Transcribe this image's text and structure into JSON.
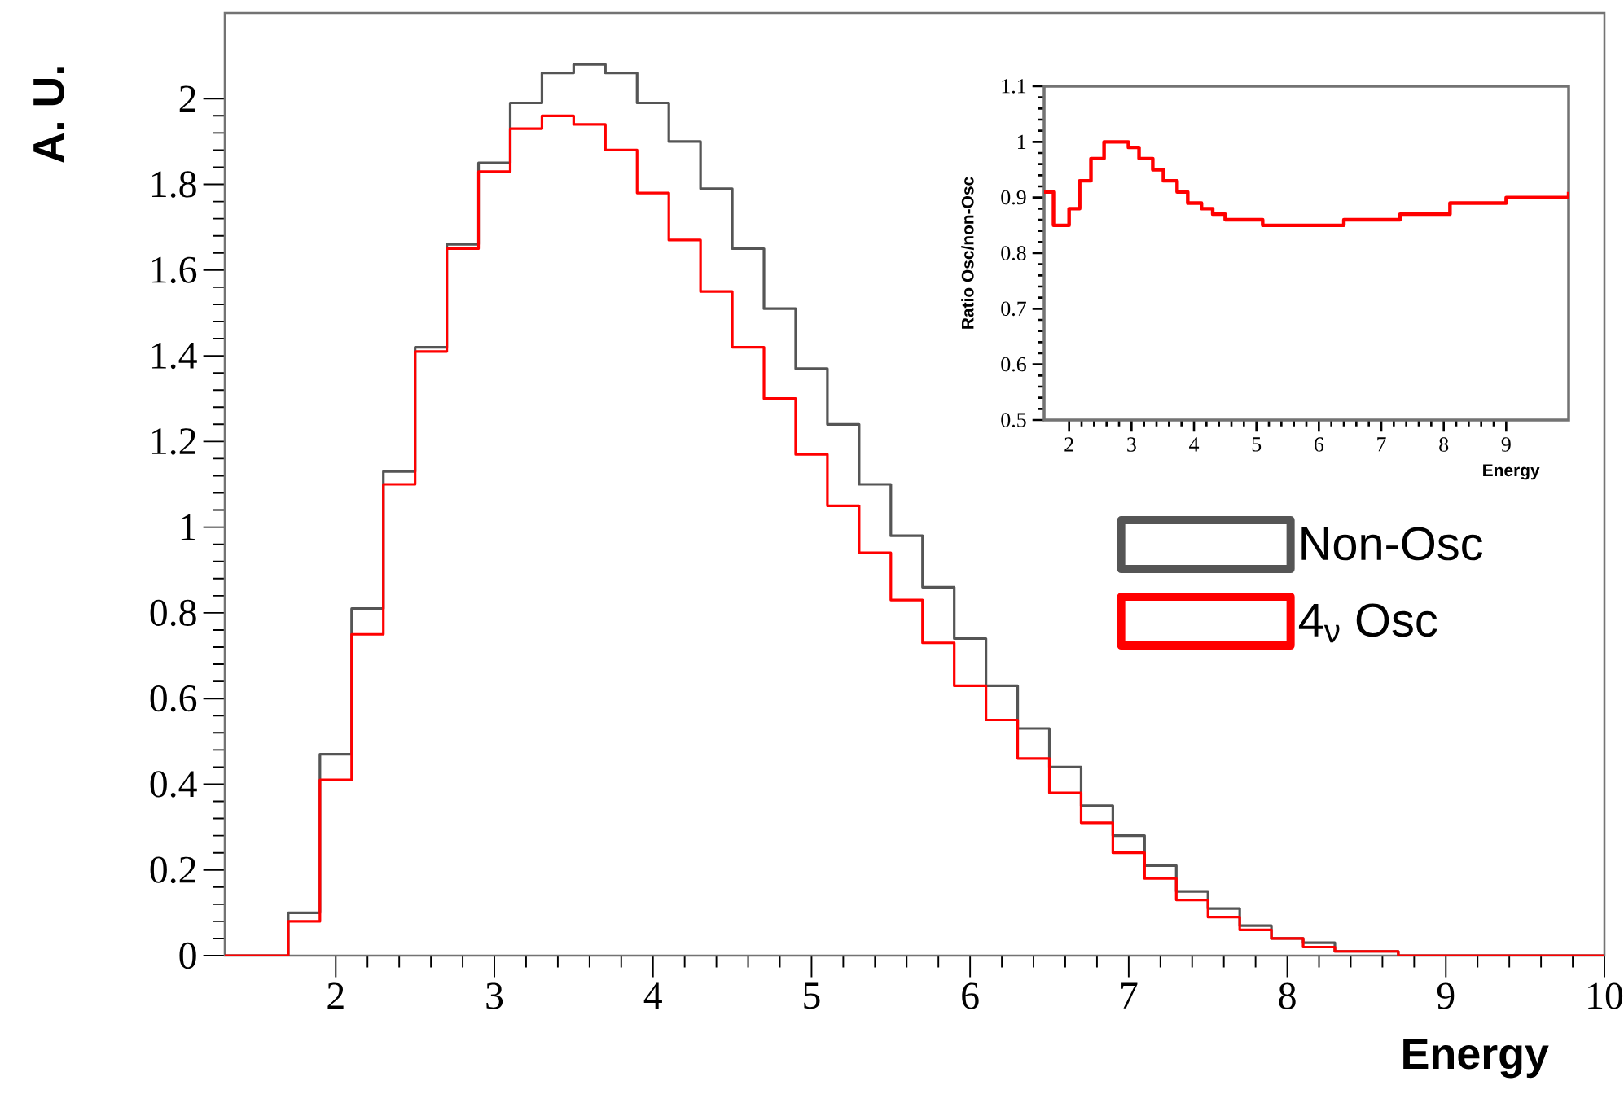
{
  "chart_data": [
    {
      "type": "histogram",
      "xlabel": "Energy",
      "ylabel": "A. U.",
      "legend": "right",
      "bins": [
        1.3,
        1.5,
        1.7,
        1.9,
        2.1,
        2.3,
        2.5,
        2.7,
        2.9,
        3.1,
        3.3,
        3.5,
        3.7,
        3.9,
        4.1,
        4.3,
        4.5,
        4.7,
        4.9,
        5.1,
        5.3,
        5.5,
        5.7,
        5.9,
        6.1,
        6.3,
        6.5,
        6.7,
        6.9,
        7.1,
        7.3,
        7.5,
        7.7,
        7.9,
        8.1,
        8.3,
        8.5,
        8.7,
        8.9,
        9.1,
        9.3,
        9.5,
        9.7,
        9.9,
        10
      ],
      "series": [
        {
          "name": "Non-Osc",
          "color": "#555555",
          "values": [
            0,
            0,
            0.1,
            0.47,
            0.81,
            1.13,
            1.42,
            1.66,
            1.85,
            1.99,
            2.06,
            2.08,
            2.06,
            1.99,
            1.9,
            1.79,
            1.65,
            1.51,
            1.37,
            1.24,
            1.1,
            0.98,
            0.86,
            0.74,
            0.63,
            0.53,
            0.44,
            0.35,
            0.28,
            0.21,
            0.15,
            0.11,
            0.07,
            0.04,
            0.03,
            0.01,
            0.01,
            0,
            0,
            0,
            0,
            0,
            0,
            0
          ]
        },
        {
          "name": "4$_{ν}$ Osc",
          "color": "#ff0000",
          "values": [
            0,
            0,
            0.08,
            0.41,
            0.75,
            1.1,
            1.41,
            1.65,
            1.83,
            1.93,
            1.96,
            1.94,
            1.88,
            1.78,
            1.67,
            1.55,
            1.42,
            1.3,
            1.17,
            1.05,
            0.94,
            0.83,
            0.73,
            0.63,
            0.55,
            0.46,
            0.38,
            0.31,
            0.24,
            0.18,
            0.13,
            0.09,
            0.06,
            0.04,
            0.02,
            0.01,
            0.01,
            0,
            0,
            0,
            0,
            0,
            0,
            0
          ]
        }
      ],
      "xlim": [
        1.3,
        10
      ],
      "ylim": [
        0,
        2.2
      ],
      "xticks": [
        2,
        3,
        4,
        5,
        6,
        7,
        8,
        9,
        10
      ],
      "yticks": [
        0,
        0.2,
        0.4,
        0.6,
        0.8,
        1,
        1.2,
        1.4,
        1.6,
        1.8,
        2
      ]
    },
    {
      "type": "step",
      "xlabel": "Energy",
      "ylabel": "Ratio Osc/non-Osc",
      "x": [
        1.6,
        1.75,
        2.0,
        2.17,
        2.35,
        2.56,
        2.73,
        2.95,
        3.12,
        3.34,
        3.51,
        3.73,
        3.9,
        4.12,
        4.3,
        4.5,
        4.7,
        5.1,
        5.5,
        6.0,
        6.4,
        7.3,
        8.1,
        9.0,
        10.0
      ],
      "series": [
        {
          "color": "#ff0000",
          "values": [
            0.91,
            0.85,
            0.88,
            0.93,
            0.97,
            1.0,
            1.0,
            0.99,
            0.97,
            0.95,
            0.93,
            0.91,
            0.89,
            0.88,
            0.87,
            0.86,
            0.86,
            0.85,
            0.85,
            0.85,
            0.86,
            0.87,
            0.89,
            0.9,
            0.91
          ]
        }
      ],
      "xlim": [
        1.6,
        10
      ],
      "ylim": [
        0.5,
        1.1
      ],
      "xticks": [
        2,
        3,
        4,
        5,
        6,
        7,
        8,
        9
      ],
      "yticks": [
        0.5,
        0.6,
        0.7,
        0.8,
        0.9,
        1,
        1.1
      ]
    }
  ]
}
